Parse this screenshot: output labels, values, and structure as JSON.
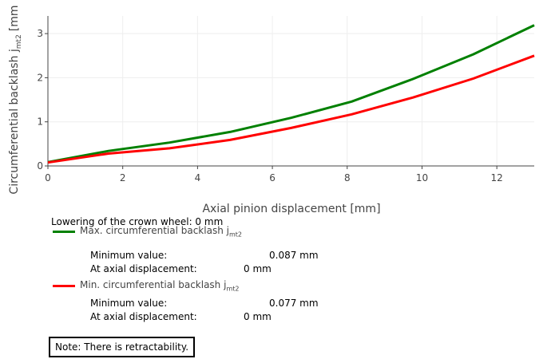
{
  "chart_data": {
    "type": "line",
    "xlabel": "Axial pinion displacement [mm]",
    "ylabel_main": "Circumferential backlash j",
    "ylabel_sub": "mt2",
    "ylabel_unit": "[mm",
    "xlim": [
      0,
      13
    ],
    "ylim": [
      0,
      3.4
    ],
    "xticks": [
      0,
      2,
      4,
      6,
      8,
      10,
      12
    ],
    "yticks": [
      0,
      1,
      2,
      3
    ],
    "grid": true,
    "series": [
      {
        "name": "Max. circumferential backlash jmt2",
        "color": "#008000",
        "x": [
          0,
          1.62,
          3.25,
          4.87,
          6.5,
          8.12,
          9.75,
          11.37,
          13
        ],
        "y": [
          0.087,
          0.34,
          0.53,
          0.77,
          1.09,
          1.46,
          1.97,
          2.53,
          3.19
        ]
      },
      {
        "name": "Min. circumferential backlash jmt2",
        "color": "#ff0000",
        "x": [
          0,
          1.62,
          3.25,
          4.87,
          6.5,
          8.12,
          9.75,
          11.37,
          13
        ],
        "y": [
          0.077,
          0.28,
          0.4,
          0.59,
          0.86,
          1.17,
          1.55,
          1.98,
          2.5
        ]
      }
    ]
  },
  "header": {
    "lowering": "Lowering of the crown wheel: 0 mm"
  },
  "legend": [
    {
      "label": "Max. circumferential backlash j",
      "sub": "mt2",
      "color": "#008000",
      "min_label": "Minimum value:",
      "min_value": "0.087 mm",
      "at_label": "At axial displacement:",
      "at_value": "0 mm"
    },
    {
      "label": "Min. circumferential backlash j",
      "sub": "mt2",
      "color": "#ff0000",
      "min_label": "Minimum value:",
      "min_value": "0.077 mm",
      "at_label": "At axial displacement:",
      "at_value": "0 mm"
    }
  ],
  "note": "Note: There is retractability."
}
